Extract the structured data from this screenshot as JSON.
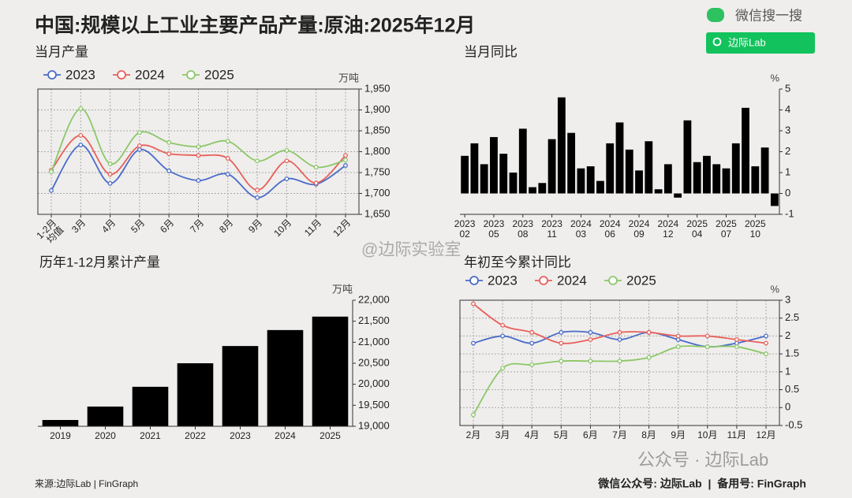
{
  "header": {
    "title": "中国:规模以上工业主要产品产量:原油:2025年12月",
    "search_hint": "微信搜一搜",
    "search_box": "边际Lab"
  },
  "watermark": {
    "weibo": "@边际实验室",
    "account": "公众号 · 边际Lab"
  },
  "footer": {
    "source": "来源:边际Lab | FinGraph",
    "contact": "微信公众号: 边际Lab  |  备用号: FinGraph"
  },
  "chart_data": [
    {
      "type": "line",
      "title": "当月产量",
      "y_unit": "万吨",
      "grid": true,
      "categories": [
        "1-2月\n均值",
        "3月",
        "4月",
        "5月",
        "6月",
        "7月",
        "8月",
        "9月",
        "10月",
        "11月",
        "12月"
      ],
      "series": [
        {
          "name": "2023",
          "color": "#4a6bc9",
          "values": [
            1707,
            1816,
            1724,
            1805,
            1754,
            1731,
            1746,
            1690,
            1735,
            1722,
            1767
          ]
        },
        {
          "name": "2024",
          "color": "#e8605b",
          "values": [
            1756,
            1839,
            1746,
            1814,
            1795,
            1791,
            1784,
            1708,
            1778,
            1725,
            1791
          ]
        },
        {
          "name": "2025",
          "color": "#8cc768",
          "values": [
            1752,
            1903,
            1771,
            1846,
            1822,
            1812,
            1825,
            1778,
            1803,
            1763,
            1780
          ]
        }
      ],
      "ylim": [
        1650,
        1950
      ],
      "yticks": [
        {
          "value": 1650,
          "label": "1,650"
        },
        {
          "value": 1700,
          "label": "1,700"
        },
        {
          "value": 1750,
          "label": "1,750"
        },
        {
          "value": 1800,
          "label": "1,800"
        },
        {
          "value": 1850,
          "label": "1,850"
        },
        {
          "value": 1900,
          "label": "1,900"
        },
        {
          "value": 1950,
          "label": "1,950"
        }
      ]
    },
    {
      "type": "bar",
      "title": "当月同比",
      "y_unit": "%",
      "grid": false,
      "color": "#000000",
      "categories": [
        "2023\n02",
        null,
        null,
        "2023\n05",
        null,
        null,
        "2023\n08",
        null,
        null,
        "2023\n11",
        null,
        null,
        "2024\n03",
        null,
        null,
        "2024\n06",
        null,
        null,
        "2024\n09",
        null,
        null,
        "2024\n12",
        null,
        null,
        "2025\n04",
        null,
        null,
        "2025\n07",
        null,
        null,
        "2025\n10",
        null,
        null
      ],
      "values": [
        1.8,
        2.4,
        1.4,
        2.7,
        1.9,
        1.0,
        3.1,
        0.3,
        0.5,
        2.6,
        4.6,
        2.9,
        1.2,
        1.3,
        0.6,
        2.4,
        3.4,
        2.1,
        1.1,
        2.5,
        0.2,
        1.4,
        -0.2,
        3.5,
        1.5,
        1.8,
        1.4,
        1.2,
        2.4,
        4.1,
        1.3,
        2.2,
        -0.6
      ],
      "ylim": [
        -1,
        5
      ],
      "yticks": [
        -1,
        0,
        1,
        2,
        3,
        4,
        5
      ]
    },
    {
      "type": "bar",
      "title": "历年1-12月累计产量",
      "y_unit": "万吨",
      "grid": false,
      "color": "#000000",
      "categories": [
        "2019",
        "2020",
        "2021",
        "2022",
        "2023",
        "2024",
        "2025"
      ],
      "values": [
        19150,
        19470,
        19940,
        20500,
        20910,
        21290,
        21610
      ],
      "ylim": [
        19000,
        22000
      ],
      "yticks": [
        {
          "value": 19000,
          "label": "19,000"
        },
        {
          "value": 19500,
          "label": "19,500"
        },
        {
          "value": 20000,
          "label": "20,000"
        },
        {
          "value": 20500,
          "label": "20,500"
        },
        {
          "value": 21000,
          "label": "21,000"
        },
        {
          "value": 21500,
          "label": "21,500"
        },
        {
          "value": 22000,
          "label": "22,000"
        }
      ]
    },
    {
      "type": "line",
      "title": "年初至今累计同比",
      "y_unit": "%",
      "grid": true,
      "categories": [
        "2月",
        "3月",
        "4月",
        "5月",
        "6月",
        "7月",
        "8月",
        "9月",
        "10月",
        "11月",
        "12月"
      ],
      "series": [
        {
          "name": "2023",
          "color": "#4a6bc9",
          "values": [
            1.8,
            2.0,
            1.8,
            2.1,
            2.1,
            1.9,
            2.1,
            1.9,
            1.7,
            1.8,
            2.0
          ]
        },
        {
          "name": "2024",
          "color": "#e8605b",
          "values": [
            2.9,
            2.3,
            2.1,
            1.8,
            1.9,
            2.1,
            2.1,
            2.0,
            2.0,
            1.9,
            1.8
          ]
        },
        {
          "name": "2025",
          "color": "#8cc768",
          "values": [
            -0.2,
            1.1,
            1.2,
            1.3,
            1.3,
            1.3,
            1.4,
            1.7,
            1.7,
            1.7,
            1.5
          ]
        }
      ],
      "ylim": [
        -0.5,
        3
      ],
      "yticks": [
        -0.5,
        0,
        0.5,
        1,
        1.5,
        2,
        2.5,
        3
      ]
    }
  ]
}
